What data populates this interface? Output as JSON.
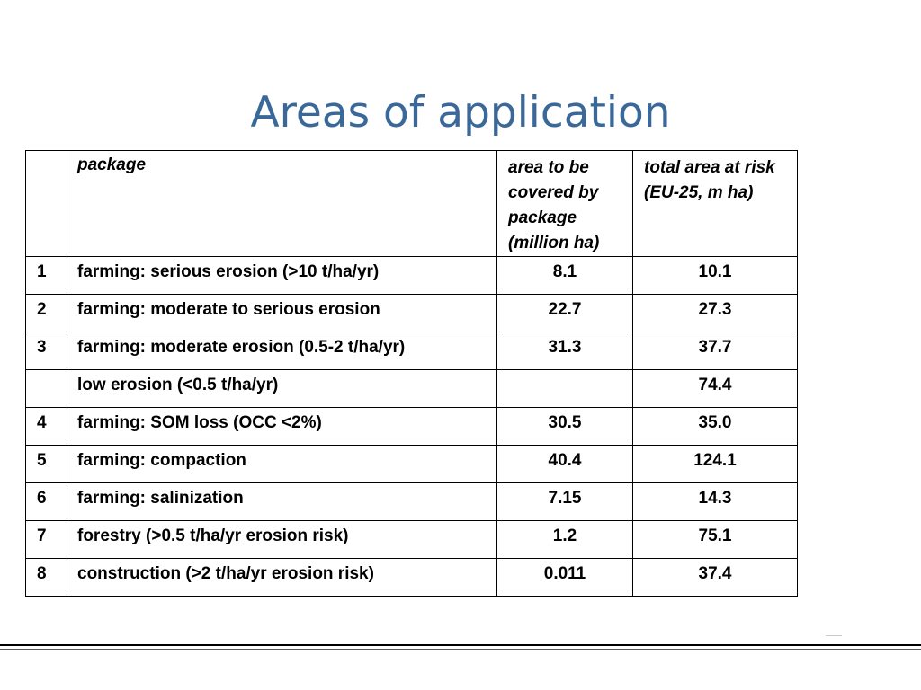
{
  "slide": {
    "title": "Areas of application"
  },
  "table": {
    "headers": {
      "number": "",
      "package": "package",
      "area": "area to be covered by package (million ha)",
      "total": "total area at risk (EU-25, m ha)"
    },
    "rows": [
      {
        "number": "1",
        "package": "farming: serious erosion (>10 t/ha/yr)",
        "area": "8.1",
        "total": "10.1"
      },
      {
        "number": "2",
        "package": "farming: moderate to serious erosion",
        "area": "22.7",
        "total": "27.3"
      },
      {
        "number": "3",
        "package": "farming: moderate erosion (0.5-2 t/ha/yr)",
        "area": "31.3",
        "total": "37.7"
      },
      {
        "number": "",
        "package": "low erosion (<0.5 t/ha/yr)",
        "area": "",
        "total": "74.4"
      },
      {
        "number": "4",
        "package": "farming: SOM loss (OCC <2%)",
        "area": "30.5",
        "total": "35.0"
      },
      {
        "number": "5",
        "package": "farming: compaction",
        "area": "40.4",
        "total": "124.1"
      },
      {
        "number": "6",
        "package": "farming: salinization",
        "area": "7.15",
        "total": "14.3"
      },
      {
        "number": "7",
        "package": "forestry (>0.5 t/ha/yr erosion risk)",
        "area": "1.2",
        "total": "75.1"
      },
      {
        "number": "8",
        "package": "construction (>2 t/ha/yr erosion risk)",
        "area": "0.011",
        "total": "37.4"
      }
    ]
  },
  "colors": {
    "title": "#3a6999",
    "text": "#000000",
    "border": "#000000",
    "background": "#ffffff"
  }
}
